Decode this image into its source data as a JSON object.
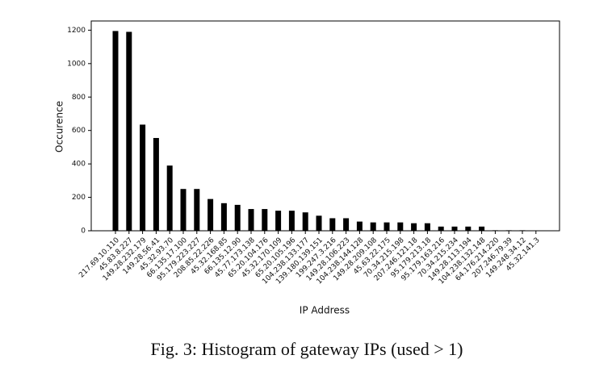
{
  "chart_data": {
    "type": "bar",
    "x_label": "IP Address",
    "y_label": "Occurence",
    "caption": "Fig. 3: Histogram of gateway IPs (used > 1)",
    "categories": [
      "217.69.10.110",
      "45.83.8.227",
      "149.28.232.179",
      "149.28.56.41",
      "45.32.93.70",
      "66.135.17.100",
      "95.179.223.227",
      "208.85.22.226",
      "45.32.168.85",
      "66.135.12.90",
      "45.77.173.138",
      "65.20.104.176",
      "45.32.170.109",
      "65.20.105.196",
      "104.238.133.177",
      "139.180.139.151",
      "199.247.3.216",
      "149.28.106.223",
      "104.238.144.128",
      "149.28.209.108",
      "45.63.22.175",
      "70.34.215.198",
      "207.246.121.18",
      "95.179.213.18",
      "95.179.163.216",
      "70.34.215.234",
      "149.28.113.194",
      "104.238.132.148",
      "64.176.214.220",
      "207.246.79.39",
      "149.248.34.12",
      "45.32.141.3"
    ],
    "values": [
      1195,
      1190,
      635,
      555,
      390,
      250,
      250,
      190,
      165,
      155,
      130,
      130,
      120,
      120,
      110,
      90,
      75,
      75,
      55,
      50,
      50,
      50,
      45,
      45,
      25,
      25,
      25,
      25,
      3,
      3,
      3,
      2
    ],
    "color": "#000000",
    "ylim": [
      0,
      1255
    ],
    "yticks": [
      0,
      200,
      400,
      600,
      800,
      1000,
      1200
    ],
    "grid": false
  }
}
